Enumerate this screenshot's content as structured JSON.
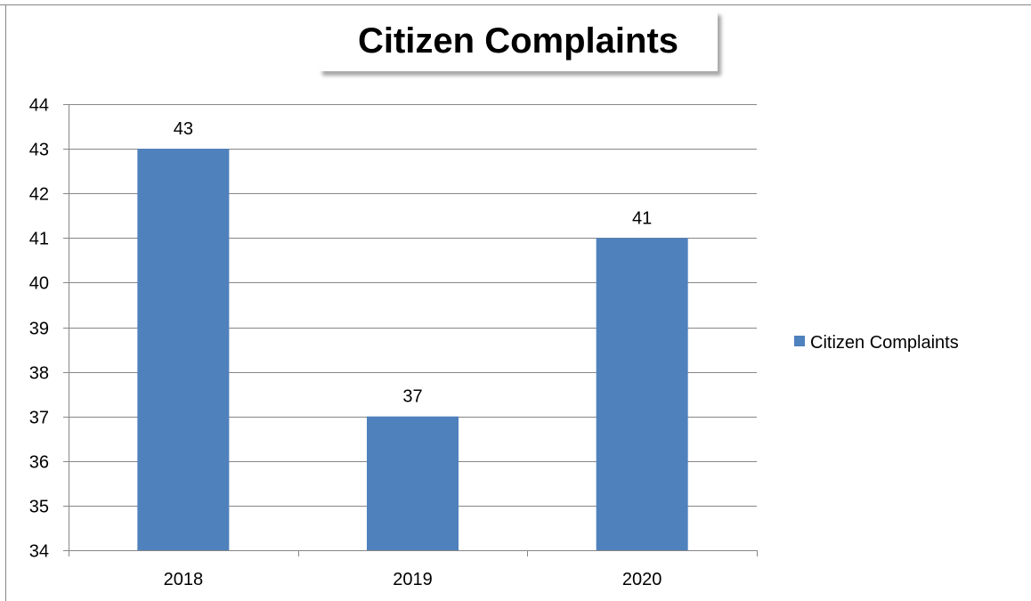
{
  "chart_data": {
    "type": "bar",
    "title": "Citizen Complaints",
    "categories": [
      "2018",
      "2019",
      "2020"
    ],
    "series": [
      {
        "name": "Citizen Complaints",
        "values": [
          43,
          37,
          41
        ]
      }
    ],
    "data_labels": [
      "43",
      "37",
      "41"
    ],
    "xlabel": "",
    "ylabel": "",
    "ylim": [
      34,
      44
    ],
    "yticks": [
      "34",
      "35",
      "36",
      "37",
      "38",
      "39",
      "40",
      "41",
      "42",
      "43",
      "44"
    ],
    "grid": true,
    "legend_position": "right",
    "colors": {
      "bar": "#4F81BD",
      "grid": "#868686",
      "axis": "#868686"
    }
  }
}
